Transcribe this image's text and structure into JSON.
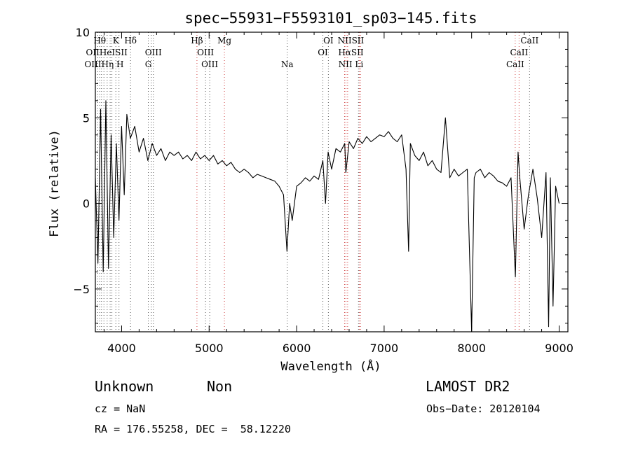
{
  "chart_data": {
    "type": "line",
    "title": "spec−55931−F5593101_sp03−145.fits",
    "xlabel": "Wavelength (Å)",
    "ylabel": "Flux (relative)",
    "xlim": [
      3700,
      9100
    ],
    "ylim": [
      -7.5,
      10
    ],
    "xticks": [
      4000,
      5000,
      6000,
      7000,
      8000,
      9000
    ],
    "yticks": [
      -5,
      0,
      5,
      10
    ],
    "grid": false,
    "series": [
      {
        "x": [
          3700,
          3730,
          3760,
          3790,
          3820,
          3850,
          3880,
          3910,
          3940,
          3970,
          4000,
          4030,
          4060,
          4100,
          4150,
          4200,
          4250,
          4300,
          4350,
          4400,
          4450,
          4500,
          4550,
          4600,
          4650,
          4700,
          4750,
          4800,
          4850,
          4900,
          4950,
          5000,
          5050,
          5100,
          5150,
          5200,
          5250,
          5300,
          5350,
          5400,
          5450,
          5500,
          5550,
          5600,
          5650,
          5700,
          5750,
          5800,
          5850,
          5890,
          5920,
          5950,
          6000,
          6050,
          6100,
          6150,
          6200,
          6250,
          6300,
          6330,
          6360,
          6400,
          6450,
          6500,
          6550,
          6563,
          6600,
          6650,
          6700,
          6750,
          6800,
          6850,
          6900,
          6950,
          7000,
          7050,
          7100,
          7150,
          7200,
          7250,
          7280,
          7300,
          7350,
          7400,
          7450,
          7500,
          7550,
          7600,
          7650,
          7700,
          7750,
          7800,
          7850,
          7900,
          7950,
          8000,
          8030,
          8050,
          8100,
          8150,
          8200,
          8250,
          8300,
          8350,
          8400,
          8450,
          8500,
          8530,
          8550,
          8600,
          8650,
          8700,
          8750,
          8800,
          8850,
          8880,
          8900,
          8930,
          8960,
          9000
        ],
        "y": [
          1.5,
          -3.5,
          5.5,
          -4.0,
          6.0,
          -3.8,
          4.0,
          -2.0,
          3.5,
          -1.0,
          4.5,
          0.5,
          5.2,
          3.8,
          4.5,
          3.0,
          3.8,
          2.5,
          3.5,
          2.8,
          3.2,
          2.5,
          3.0,
          2.8,
          3.0,
          2.6,
          2.8,
          2.5,
          3.0,
          2.6,
          2.8,
          2.5,
          2.8,
          2.3,
          2.5,
          2.2,
          2.4,
          2.0,
          1.8,
          2.0,
          1.8,
          1.5,
          1.7,
          1.6,
          1.5,
          1.4,
          1.3,
          1.0,
          0.5,
          -2.8,
          0.0,
          -1.0,
          1.0,
          1.2,
          1.5,
          1.3,
          1.6,
          1.4,
          2.5,
          0.0,
          3.0,
          2.0,
          3.2,
          3.0,
          3.5,
          1.8,
          3.6,
          3.2,
          3.8,
          3.5,
          3.9,
          3.6,
          3.8,
          4.0,
          3.9,
          4.2,
          3.8,
          3.6,
          4.0,
          2.0,
          -2.8,
          3.5,
          2.8,
          2.5,
          3.0,
          2.2,
          2.5,
          2.0,
          1.8,
          5.0,
          1.5,
          2.0,
          1.6,
          1.8,
          2.0,
          -7.5,
          1.5,
          1.8,
          2.0,
          1.5,
          1.8,
          1.6,
          1.3,
          1.2,
          1.0,
          1.5,
          -4.3,
          3.0,
          1.5,
          -1.5,
          0.5,
          2.0,
          0.3,
          -2.0,
          1.8,
          -7.2,
          1.5,
          -6.0,
          1.0,
          0.0
        ]
      }
    ],
    "line_markers": [
      {
        "label": "Hθ",
        "wave": 3750,
        "row": 0
      },
      {
        "label": "K",
        "wave": 3934,
        "row": 0
      },
      {
        "label": "Hδ",
        "wave": 4102,
        "row": 0
      },
      {
        "label": "Hβ",
        "wave": 4861,
        "row": 0
      },
      {
        "label": "Mg",
        "wave": 5175,
        "row": 0
      },
      {
        "label": "OI",
        "wave": 6363,
        "row": 0
      },
      {
        "label": "NIISII",
        "wave": 6620,
        "row": 0
      },
      {
        "label": "CaII",
        "wave": 8662,
        "row": 0
      },
      {
        "label": "OIIHeISII",
        "wave": 3830,
        "row": 1
      },
      {
        "label": "OIII",
        "wave": 4363,
        "row": 1
      },
      {
        "label": "OIII",
        "wave": 4959,
        "row": 1
      },
      {
        "label": "OI",
        "wave": 6300,
        "row": 1
      },
      {
        "label": "HαSII",
        "wave": 6620,
        "row": 1
      },
      {
        "label": "CaII",
        "wave": 8542,
        "row": 1
      },
      {
        "label": "OIIIHη H",
        "wave": 3800,
        "row": 2
      },
      {
        "label": "G",
        "wave": 4305,
        "row": 2
      },
      {
        "label": "OIII",
        "wave": 5007,
        "row": 2
      },
      {
        "label": "Na",
        "wave": 5893,
        "row": 2
      },
      {
        "label": "NII Li",
        "wave": 6620,
        "row": 2
      },
      {
        "label": "CaII",
        "wave": 8498,
        "row": 2
      }
    ],
    "marker_lines": [
      3727,
      3750,
      3770,
      3798,
      3835,
      3869,
      3889,
      3934,
      3970,
      4102,
      4305,
      4340,
      4363,
      4861,
      4959,
      5007,
      5175,
      5893,
      6300,
      6363,
      6548,
      6563,
      6583,
      6707,
      6717,
      6731,
      8498,
      8542,
      8662
    ]
  },
  "info": {
    "class_label": "Unknown",
    "subclass_label": "Non",
    "survey_label": "LAMOST DR2",
    "cz_label": "cz = NaN",
    "obs_date_label": "Obs−Date: 20120104",
    "coords_label": "RA = 176.55258, DEC =  58.12220"
  }
}
